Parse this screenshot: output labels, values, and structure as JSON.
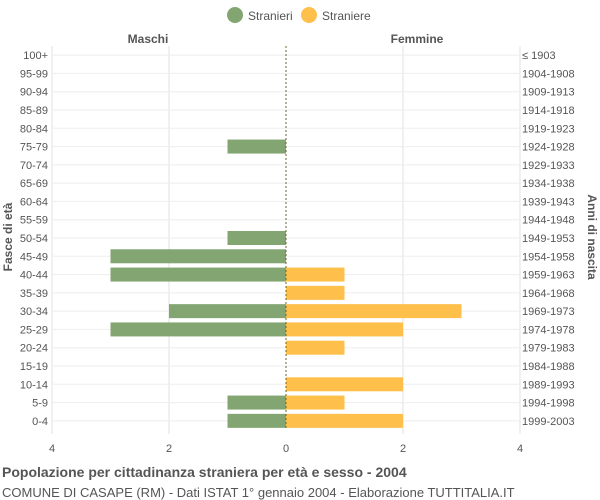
{
  "chart_data": {
    "type": "bar",
    "orientation": "horizontal-population-pyramid",
    "legend": [
      {
        "name": "Stranieri",
        "color": "#82a572"
      },
      {
        "name": "Straniere",
        "color": "#fec04a"
      }
    ],
    "left_header": "Maschi",
    "right_header": "Femmine",
    "ylabel_left": "Fasce di età",
    "ylabel_right": "Anni di nascita",
    "xlim": [
      -4,
      4
    ],
    "xticks": [
      -4,
      -2,
      0,
      2,
      4
    ],
    "xtick_labels": [
      "4",
      "2",
      "0",
      "2",
      "4"
    ],
    "categories": [
      "100+",
      "95-99",
      "90-94",
      "85-89",
      "80-84",
      "75-79",
      "70-74",
      "65-69",
      "60-64",
      "55-59",
      "50-54",
      "45-49",
      "40-44",
      "35-39",
      "30-34",
      "25-29",
      "20-24",
      "15-19",
      "10-14",
      "5-9",
      "0-4"
    ],
    "birth_years": [
      "≤ 1903",
      "1904-1908",
      "1909-1913",
      "1914-1918",
      "1919-1923",
      "1924-1928",
      "1929-1933",
      "1934-1938",
      "1939-1943",
      "1944-1948",
      "1949-1953",
      "1954-1958",
      "1959-1963",
      "1964-1968",
      "1969-1973",
      "1974-1978",
      "1979-1983",
      "1984-1988",
      "1989-1993",
      "1994-1998",
      "1999-2003"
    ],
    "series": [
      {
        "name": "Stranieri",
        "values": [
          0,
          0,
          0,
          0,
          0,
          1,
          0,
          0,
          0,
          0,
          1,
          3,
          3,
          0,
          2,
          3,
          0,
          0,
          0,
          1,
          1
        ]
      },
      {
        "name": "Straniere",
        "values": [
          0,
          0,
          0,
          0,
          0,
          0,
          0,
          0,
          0,
          0,
          0,
          0,
          1,
          1,
          3,
          2,
          1,
          0,
          2,
          1,
          2
        ]
      }
    ]
  },
  "footer": {
    "title": "Popolazione per cittadinanza straniera per età e sesso - 2004",
    "subtitle": "COMUNE DI CASAPE (RM) - Dati ISTAT 1° gennaio 2004 - Elaborazione TUTTITALIA.IT"
  },
  "colors": {
    "male": "#82a572",
    "female": "#fec04a",
    "grid": "#e0e0e0",
    "text": "#555555"
  }
}
